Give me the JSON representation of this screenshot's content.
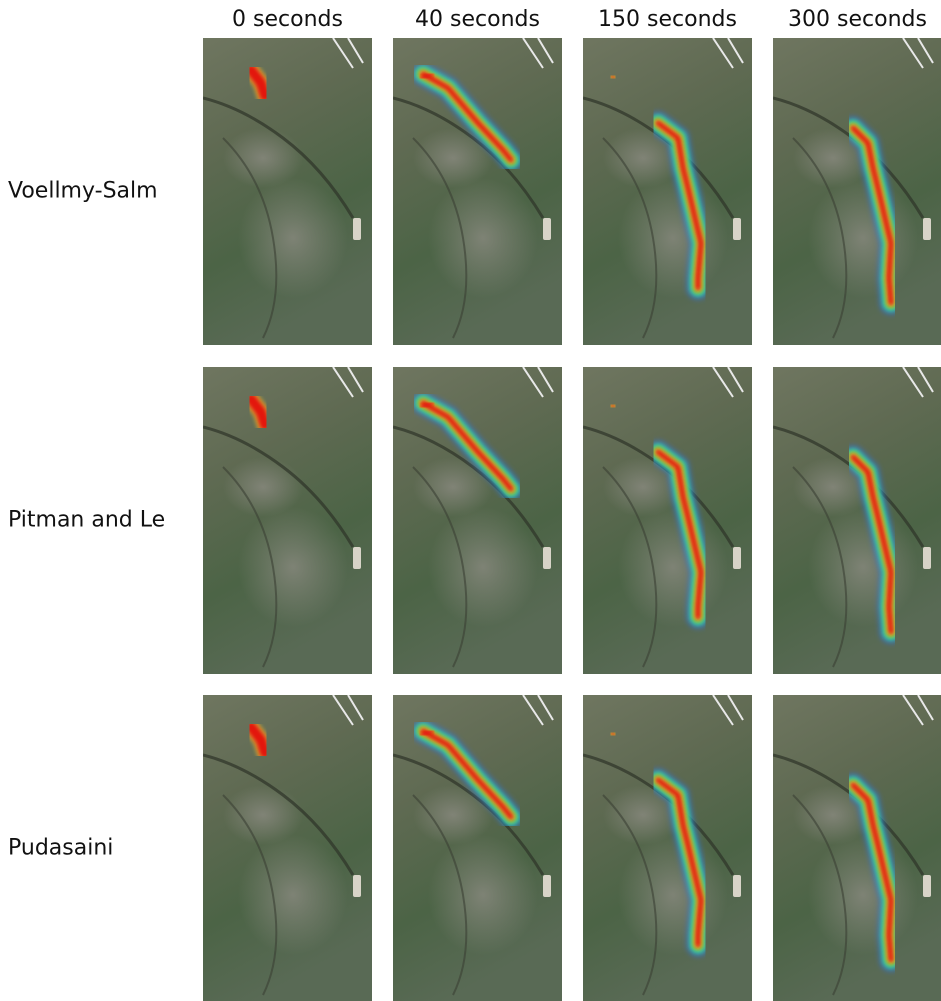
{
  "columns": [
    "0 seconds",
    "40 seconds",
    "150 seconds",
    "300 seconds"
  ],
  "rows": [
    "Voellmy-Salm",
    "Pitman and Le",
    "Pudasaini"
  ]
}
